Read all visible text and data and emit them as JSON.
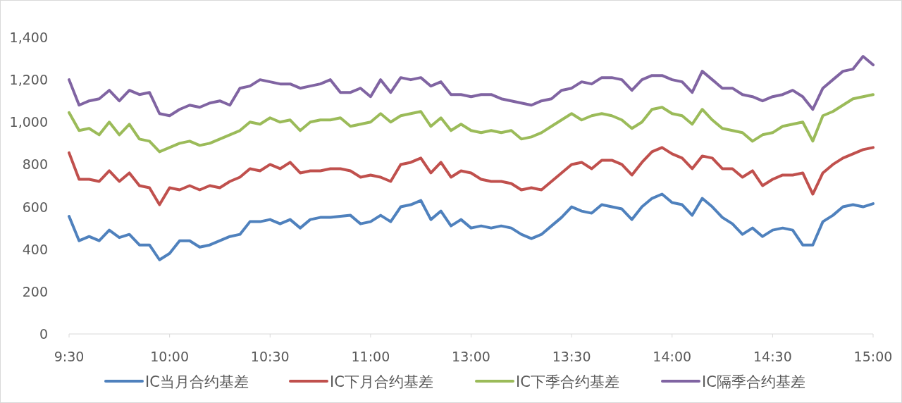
{
  "chart_data": {
    "type": "line",
    "categories": [
      "9:30",
      null,
      null,
      null,
      null,
      null,
      null,
      null,
      null,
      null,
      "10:00",
      null,
      null,
      null,
      null,
      null,
      null,
      null,
      null,
      null,
      "10:30",
      null,
      null,
      null,
      null,
      null,
      null,
      null,
      null,
      null,
      "11:00",
      null,
      null,
      null,
      null,
      null,
      null,
      null,
      null,
      null,
      "13:00",
      null,
      null,
      null,
      null,
      null,
      null,
      null,
      null,
      null,
      "13:30",
      null,
      null,
      null,
      null,
      null,
      null,
      null,
      null,
      null,
      "14:00",
      null,
      null,
      null,
      null,
      null,
      null,
      null,
      null,
      null,
      "14:30",
      null,
      null,
      null,
      null,
      null,
      null,
      null,
      null,
      null,
      "15:00"
    ],
    "series": [
      {
        "name": "IC当月合约基差",
        "color": "#4f81bd",
        "values": [
          555,
          440,
          460,
          440,
          490,
          455,
          470,
          420,
          420,
          350,
          380,
          440,
          440,
          410,
          420,
          440,
          460,
          470,
          530,
          530,
          540,
          520,
          540,
          500,
          540,
          550,
          550,
          555,
          560,
          520,
          530,
          560,
          530,
          600,
          610,
          630,
          540,
          580,
          510,
          540,
          500,
          510,
          500,
          510,
          500,
          470,
          450,
          470,
          510,
          550,
          600,
          580,
          570,
          610,
          600,
          590,
          540,
          600,
          640,
          660,
          620,
          610,
          560,
          640,
          600,
          550,
          520,
          470,
          500,
          460,
          490,
          500,
          490,
          420,
          420,
          530,
          560,
          600,
          610,
          600,
          615
        ]
      },
      {
        "name": "IC下月合约基差",
        "color": "#c0504d",
        "values": [
          855,
          730,
          730,
          720,
          770,
          720,
          760,
          700,
          690,
          610,
          690,
          680,
          700,
          680,
          700,
          690,
          720,
          740,
          780,
          770,
          800,
          780,
          810,
          760,
          770,
          770,
          780,
          780,
          770,
          740,
          750,
          740,
          720,
          800,
          810,
          830,
          760,
          810,
          740,
          770,
          760,
          730,
          720,
          720,
          710,
          680,
          690,
          680,
          720,
          760,
          800,
          810,
          780,
          820,
          820,
          800,
          750,
          810,
          860,
          880,
          850,
          830,
          780,
          840,
          830,
          780,
          780,
          740,
          770,
          700,
          730,
          750,
          750,
          760,
          660,
          760,
          800,
          830,
          850,
          870,
          880
        ]
      },
      {
        "name": "IC下季合约基差",
        "color": "#9bbb59",
        "values": [
          1045,
          960,
          970,
          940,
          1000,
          940,
          990,
          920,
          910,
          860,
          880,
          900,
          910,
          890,
          900,
          920,
          940,
          960,
          1000,
          990,
          1020,
          1000,
          1010,
          960,
          1000,
          1010,
          1010,
          1020,
          980,
          990,
          1000,
          1040,
          1000,
          1030,
          1040,
          1050,
          980,
          1020,
          960,
          990,
          960,
          950,
          960,
          950,
          960,
          920,
          930,
          950,
          980,
          1010,
          1040,
          1010,
          1030,
          1040,
          1030,
          1010,
          970,
          1000,
          1060,
          1070,
          1040,
          1030,
          990,
          1060,
          1010,
          970,
          960,
          950,
          910,
          940,
          950,
          980,
          990,
          1000,
          910,
          1030,
          1050,
          1080,
          1110,
          1120,
          1130
        ]
      },
      {
        "name": "IC隔季合约基差",
        "color": "#8064a2",
        "values": [
          1200,
          1080,
          1100,
          1110,
          1150,
          1100,
          1150,
          1130,
          1140,
          1040,
          1030,
          1060,
          1080,
          1070,
          1090,
          1100,
          1080,
          1160,
          1170,
          1200,
          1190,
          1180,
          1180,
          1160,
          1170,
          1180,
          1200,
          1140,
          1140,
          1160,
          1120,
          1200,
          1140,
          1210,
          1200,
          1210,
          1170,
          1190,
          1130,
          1130,
          1120,
          1130,
          1130,
          1110,
          1100,
          1090,
          1080,
          1100,
          1110,
          1150,
          1160,
          1190,
          1180,
          1210,
          1210,
          1200,
          1150,
          1200,
          1220,
          1220,
          1200,
          1190,
          1140,
          1240,
          1200,
          1160,
          1160,
          1130,
          1120,
          1100,
          1120,
          1130,
          1150,
          1120,
          1060,
          1160,
          1200,
          1240,
          1250,
          1310,
          1270
        ]
      }
    ],
    "ylim": [
      0,
      1400
    ],
    "yticks": [
      0,
      200,
      400,
      600,
      800,
      {
        "value": 1000,
        "label": "1,000"
      },
      {
        "value": 1200,
        "label": "1,200"
      },
      {
        "value": 1400,
        "label": "1,400"
      }
    ],
    "legend": "bottom"
  }
}
